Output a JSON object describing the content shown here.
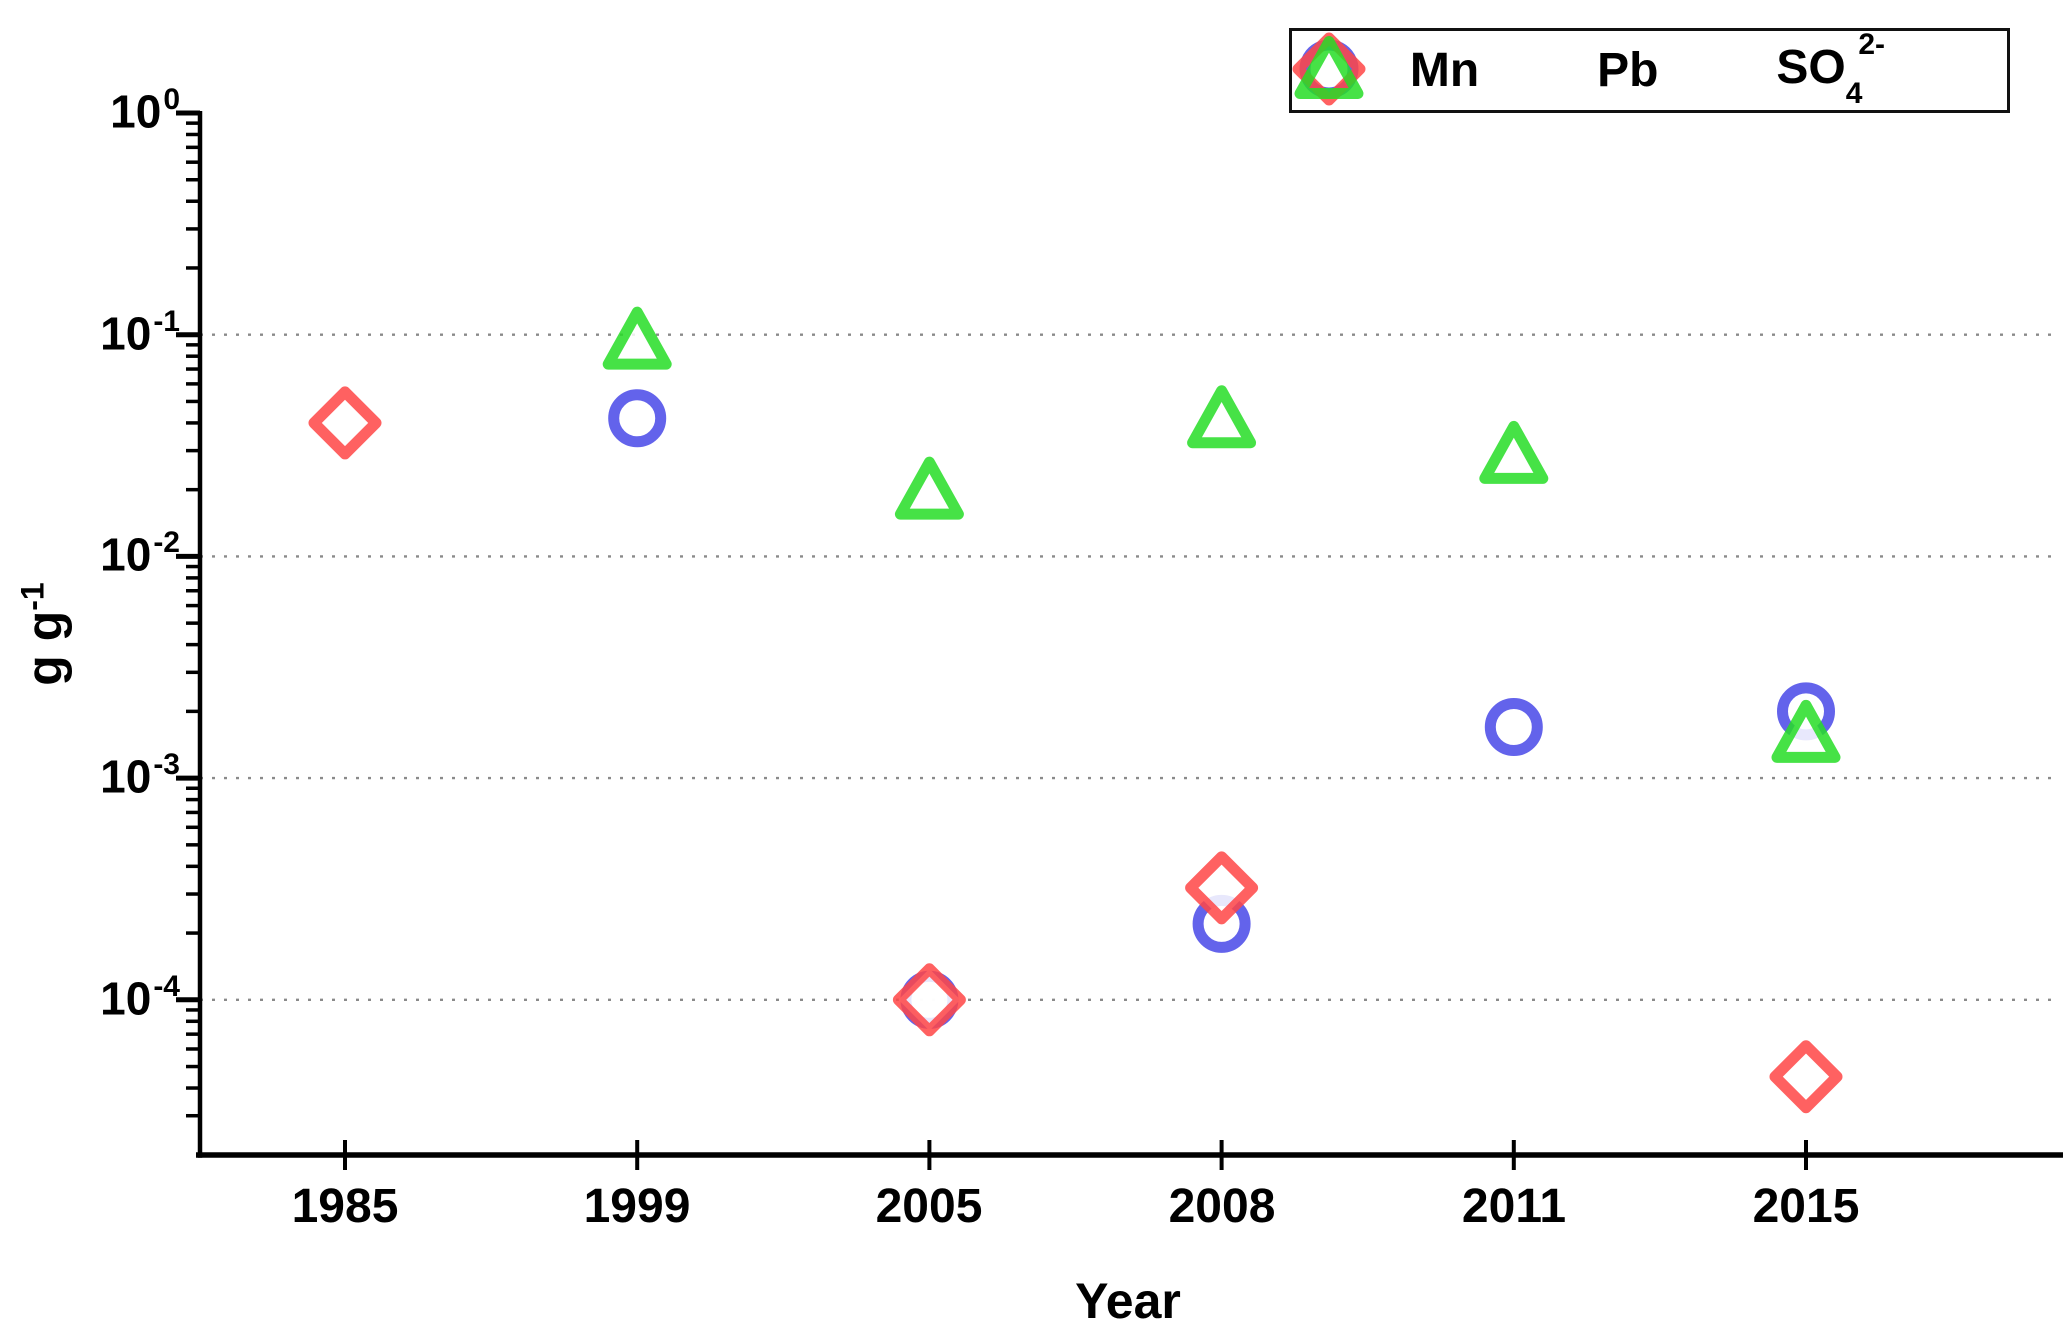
{
  "chart_data": {
    "type": "scatter",
    "title": "",
    "xlabel": "Year",
    "ylabel": "g g-1",
    "ylabel_main": "g g",
    "ylabel_sup": "-1",
    "x_categories": [
      "1985",
      "1999",
      "2005",
      "2008",
      "2011",
      "2015"
    ],
    "y_scale": "log10",
    "ylim": [
      2e-05,
      1
    ],
    "y_tick_exponents": [
      "0",
      "-1",
      "-2",
      "-3",
      "-4"
    ],
    "grid": "dotted horizontal lines at each decade 1e-1 to 1e-4",
    "legend_position": "top-right",
    "axis_color": "#000000",
    "grid_color": "#8a8a8a",
    "series": [
      {
        "name": "Mn",
        "marker": "circle",
        "color": "#4848e8",
        "label": {
          "main": "Mn",
          "sub": "",
          "sup": ""
        },
        "points": [
          {
            "x": "1999",
            "y": 0.042
          },
          {
            "x": "2005",
            "y": 0.0001
          },
          {
            "x": "2008",
            "y": 0.00022
          },
          {
            "x": "2011",
            "y": 0.0017
          },
          {
            "x": "2015",
            "y": 0.002
          }
        ]
      },
      {
        "name": "Pb",
        "marker": "diamond",
        "color": "#ff4545",
        "label": {
          "main": "Pb",
          "sub": "",
          "sup": ""
        },
        "points": [
          {
            "x": "1985",
            "y": 0.04
          },
          {
            "x": "2005",
            "y": 0.0001
          },
          {
            "x": "2008",
            "y": 0.00032
          },
          {
            "x": "2015",
            "y": 4.5e-05
          }
        ]
      },
      {
        "name": "SO4 2-",
        "marker": "triangle",
        "color": "#26dd26",
        "label": {
          "main": "SO",
          "sub": "4",
          "sup": "2-"
        },
        "points": [
          {
            "x": "1999",
            "y": 0.095
          },
          {
            "x": "2005",
            "y": 0.02
          },
          {
            "x": "2008",
            "y": 0.042
          },
          {
            "x": "2011",
            "y": 0.029
          },
          {
            "x": "2015",
            "y": 0.0016
          }
        ]
      }
    ]
  }
}
